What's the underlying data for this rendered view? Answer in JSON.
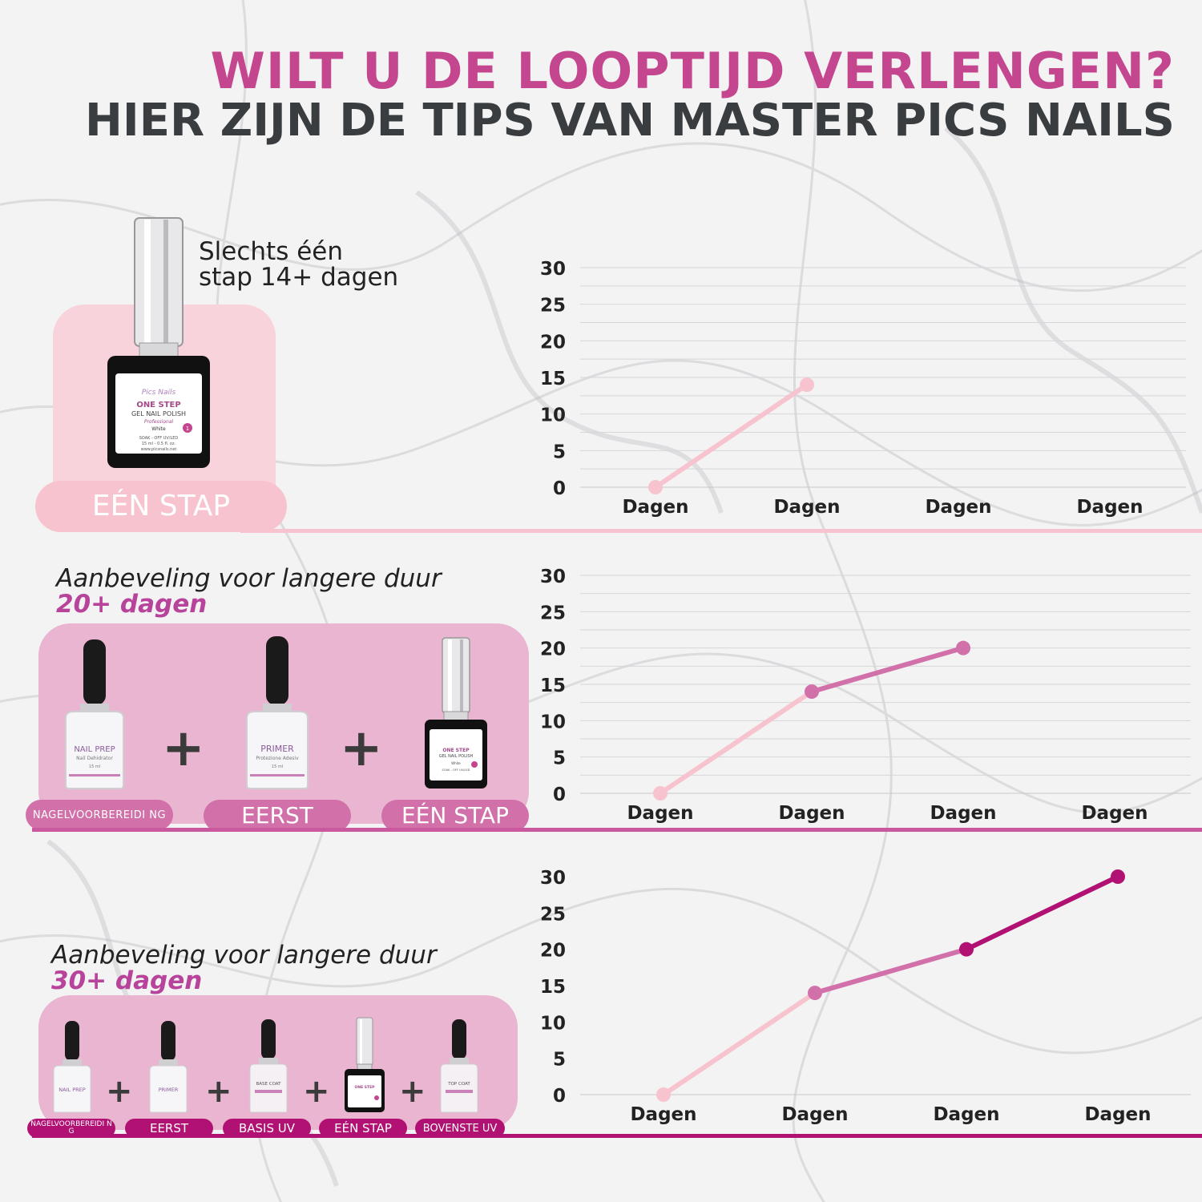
{
  "header": {
    "title_line1": "WILT U DE LOOPTIJD VERLENGEN?",
    "title_line2": "HIER ZIJN DE TIPS VAN MASTER PICS NAILS"
  },
  "colors": {
    "light_pink": "#f7c3cf",
    "mid_pink": "#d170a9",
    "deep_pink": "#b21174",
    "title_pink": "#c4468f",
    "dark_text": "#3a3d40",
    "panel_pink_1": "#f8d3dc",
    "panel_pink_2": "#e8b3cf"
  },
  "sections": [
    {
      "caption_line1": "Slechts één",
      "caption_line2": "stap 14+ dagen",
      "products": [
        {
          "icon": "one-step-black-bottle-icon",
          "pill": "EÉN STAP",
          "label_brand": "Pics Nails",
          "label_title": "ONE STEP",
          "label_sub": "GEL NAIL POLISH",
          "label_tag": "Professional",
          "label_shade": "White",
          "label_note": "SOAK - OFF UV/LED",
          "label_size": "15 ml - 0.5 fl. oz.",
          "label_site": "www.picsnails.net",
          "label_num": "1"
        }
      ]
    },
    {
      "caption": "Aanbeveling voor langere duur",
      "duration": "20+ dagen",
      "products": [
        {
          "icon": "nail-prep-bottle-icon",
          "pill": "NAGELVOORBEREIDI NG",
          "label_title": "NAIL PREP",
          "label_sub": "Nail Dehidrator",
          "label_size": "15 ml"
        },
        {
          "icon": "primer-bottle-icon",
          "pill": "EERST",
          "label_title": "PRIMER",
          "label_sub": "Protezione Adesiv",
          "label_size": "15 ml"
        },
        {
          "icon": "one-step-black-bottle-icon",
          "pill": "EÉN STAP",
          "label_title": "ONE STEP",
          "label_sub": "GEL NAIL POLISH",
          "label_shade": "White",
          "label_note": "SOAK - OFF UV/LED"
        }
      ],
      "plus": "+"
    },
    {
      "caption": "Aanbeveling voor langere duur",
      "duration": "30+ dagen",
      "products": [
        {
          "icon": "nail-prep-bottle-icon",
          "pill": "NAGELVOORBEREIDI NG",
          "label_title": "NAIL PREP"
        },
        {
          "icon": "primer-bottle-icon",
          "pill": "EERST",
          "label_title": "PRIMER"
        },
        {
          "icon": "base-coat-bottle-icon",
          "pill": "BASIS UV",
          "label_title": "BASE COAT"
        },
        {
          "icon": "one-step-black-bottle-icon",
          "pill": "EÉN STAP",
          "label_title": "ONE STEP"
        },
        {
          "icon": "top-coat-bottle-icon",
          "pill": "BOVENSTE UV",
          "label_title": "TOP COAT"
        }
      ],
      "plus": "+"
    }
  ],
  "chart_data": [
    {
      "type": "line",
      "categories": [
        "Dagen",
        "Dagen",
        "Dagen",
        "Dagen"
      ],
      "ylim": [
        0,
        30
      ],
      "yticks": [
        0,
        5,
        10,
        15,
        20,
        25,
        30
      ],
      "grid": true,
      "segments": [
        {
          "from": [
            0,
            0
          ],
          "to": [
            1,
            14
          ],
          "color": "#f7c3cf"
        }
      ],
      "points": [
        {
          "x": 0,
          "y": 0,
          "color": "#f7c3cf"
        },
        {
          "x": 1,
          "y": 14,
          "color": "#f7c3cf"
        }
      ]
    },
    {
      "type": "line",
      "categories": [
        "Dagen",
        "Dagen",
        "Dagen",
        "Dagen"
      ],
      "ylim": [
        0,
        30
      ],
      "yticks": [
        0,
        5,
        10,
        15,
        20,
        25,
        30
      ],
      "grid": true,
      "segments": [
        {
          "from": [
            0,
            0
          ],
          "to": [
            1,
            14
          ],
          "color": "#f7c3cf"
        },
        {
          "from": [
            1,
            14
          ],
          "to": [
            2,
            20
          ],
          "color": "#d170a9"
        }
      ],
      "points": [
        {
          "x": 0,
          "y": 0,
          "color": "#f7c3cf"
        },
        {
          "x": 1,
          "y": 14,
          "color": "#d170a9"
        },
        {
          "x": 2,
          "y": 20,
          "color": "#d170a9"
        }
      ]
    },
    {
      "type": "line",
      "categories": [
        "Dagen",
        "Dagen",
        "Dagen",
        "Dagen"
      ],
      "ylim": [
        0,
        30
      ],
      "yticks": [
        0,
        5,
        10,
        15,
        20,
        25,
        30
      ],
      "grid": false,
      "segments": [
        {
          "from": [
            0,
            0
          ],
          "to": [
            1,
            14
          ],
          "color": "#f7c3cf"
        },
        {
          "from": [
            1,
            14
          ],
          "to": [
            2,
            20
          ],
          "color": "#d170a9"
        },
        {
          "from": [
            2,
            20
          ],
          "to": [
            3,
            30
          ],
          "color": "#b21174"
        }
      ],
      "points": [
        {
          "x": 0,
          "y": 0,
          "color": "#f7c3cf"
        },
        {
          "x": 1,
          "y": 14,
          "color": "#d170a9"
        },
        {
          "x": 2,
          "y": 20,
          "color": "#b21174"
        },
        {
          "x": 3,
          "y": 30,
          "color": "#b21174"
        }
      ]
    }
  ]
}
